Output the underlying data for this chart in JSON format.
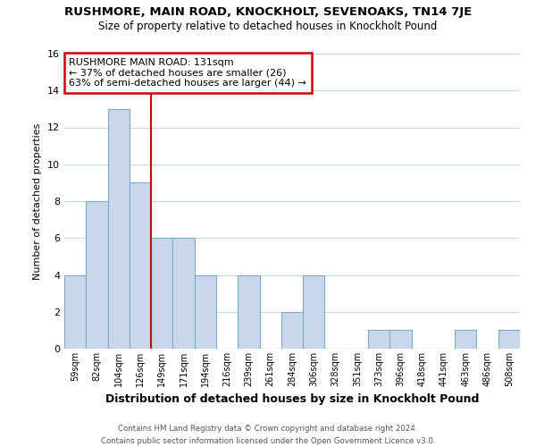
{
  "title": "RUSHMORE, MAIN ROAD, KNOCKHOLT, SEVENOAKS, TN14 7JE",
  "subtitle": "Size of property relative to detached houses in Knockholt Pound",
  "xlabel": "Distribution of detached houses by size in Knockholt Pound",
  "ylabel": "Number of detached properties",
  "footer_line1": "Contains HM Land Registry data © Crown copyright and database right 2024.",
  "footer_line2": "Contains public sector information licensed under the Open Government Licence v3.0.",
  "annotation_line1": "RUSHMORE MAIN ROAD: 131sqm",
  "annotation_line2": "← 37% of detached houses are smaller (26)",
  "annotation_line3": "63% of semi-detached houses are larger (44) →",
  "bar_color": "#c8d8ea",
  "bar_edge_color": "#7aaac8",
  "vline_color": "#cc0000",
  "annotation_box_facecolor": "#ffffff",
  "annotation_box_edgecolor": "#cc0000",
  "background_color": "#ffffff",
  "grid_color": "#c8d8e8",
  "categories": [
    "59sqm",
    "82sqm",
    "104sqm",
    "126sqm",
    "149sqm",
    "171sqm",
    "194sqm",
    "216sqm",
    "239sqm",
    "261sqm",
    "284sqm",
    "306sqm",
    "328sqm",
    "351sqm",
    "373sqm",
    "396sqm",
    "418sqm",
    "441sqm",
    "463sqm",
    "486sqm",
    "508sqm"
  ],
  "values": [
    4,
    8,
    13,
    9,
    6,
    6,
    4,
    0,
    4,
    0,
    2,
    4,
    0,
    0,
    1,
    1,
    0,
    0,
    1,
    0,
    1
  ],
  "ylim": [
    0,
    16
  ],
  "yticks": [
    0,
    2,
    4,
    6,
    8,
    10,
    12,
    14,
    16
  ],
  "vline_index": 3,
  "figsize": [
    6.0,
    5.0
  ],
  "dpi": 100
}
